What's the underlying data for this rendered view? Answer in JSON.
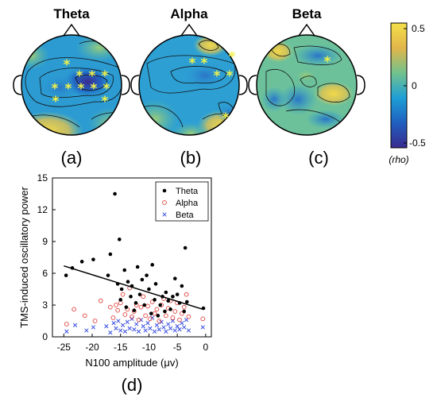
{
  "topomaps": [
    {
      "title": "Theta",
      "panel": "(a)"
    },
    {
      "title": "Alpha",
      "panel": "(b)"
    },
    {
      "title": "Beta",
      "panel": "(c)"
    }
  ],
  "colorbar": {
    "ticks": [
      "0.5",
      "0",
      "-0.5"
    ],
    "label": "(rho)",
    "colors": [
      "#f4e04a",
      "#e2b64a",
      "#72c28d",
      "#1e9fd6",
      "#1f5fbf",
      "#3a2a8f"
    ]
  },
  "scatter_panel": "(d)",
  "chart_data": {
    "type": "scatter",
    "title": "",
    "xlabel": "N100 amplitude (μv)",
    "ylabel": "TMS-induced oscillatory power",
    "xlim": [
      -27,
      1
    ],
    "ylim": [
      0,
      15
    ],
    "xticks": [
      "-25",
      "-20",
      "-15",
      "-10",
      "-5",
      "0"
    ],
    "yticks": [
      "0",
      "3",
      "6",
      "9",
      "12",
      "15"
    ],
    "legend_position": "top-right",
    "series": [
      {
        "name": "Theta",
        "marker": "dot",
        "color": "#000000",
        "points": [
          [
            -24.6,
            5.8
          ],
          [
            -23.5,
            6.5
          ],
          [
            -21.8,
            7.1
          ],
          [
            -19.8,
            7.3
          ],
          [
            -17.2,
            5.8
          ],
          [
            -16.8,
            7.8
          ],
          [
            -16.0,
            13.5
          ],
          [
            -15.5,
            5.0
          ],
          [
            -15.2,
            9.2
          ],
          [
            -15.0,
            3.5
          ],
          [
            -14.8,
            4.5
          ],
          [
            -14.3,
            6.3
          ],
          [
            -14.0,
            2.8
          ],
          [
            -13.7,
            5.2
          ],
          [
            -13.2,
            3.8
          ],
          [
            -13.0,
            4.8
          ],
          [
            -12.6,
            2.5
          ],
          [
            -12.3,
            3.2
          ],
          [
            -12.0,
            6.6
          ],
          [
            -11.6,
            4.0
          ],
          [
            -11.2,
            5.4
          ],
          [
            -10.8,
            3.0
          ],
          [
            -10.4,
            5.8
          ],
          [
            -10.0,
            4.5
          ],
          [
            -9.6,
            2.2
          ],
          [
            -9.4,
            6.8
          ],
          [
            -9.0,
            3.5
          ],
          [
            -8.8,
            5.0
          ],
          [
            -8.4,
            2.0
          ],
          [
            -8.0,
            3.0
          ],
          [
            -7.6,
            3.8
          ],
          [
            -7.2,
            2.4
          ],
          [
            -7.0,
            4.2
          ],
          [
            -6.6,
            3.4
          ],
          [
            -6.2,
            2.6
          ],
          [
            -5.8,
            3.8
          ],
          [
            -5.4,
            5.5
          ],
          [
            -5.0,
            4.0
          ],
          [
            -4.6,
            3.2
          ],
          [
            -4.2,
            4.8
          ],
          [
            -3.8,
            2.4
          ],
          [
            -3.6,
            8.4
          ],
          [
            -3.3,
            3.3
          ],
          [
            -0.4,
            2.7
          ]
        ]
      },
      {
        "name": "Alpha",
        "marker": "circle",
        "color": "#e0403a",
        "points": [
          [
            -24.5,
            1.2
          ],
          [
            -23.2,
            2.6
          ],
          [
            -21.3,
            2.0
          ],
          [
            -19.5,
            1.5
          ],
          [
            -18.5,
            3.4
          ],
          [
            -16.8,
            2.8
          ],
          [
            -16.3,
            1.8
          ],
          [
            -15.8,
            3.0
          ],
          [
            -15.5,
            2.5
          ],
          [
            -15.0,
            3.2
          ],
          [
            -14.6,
            4.0
          ],
          [
            -14.2,
            2.1
          ],
          [
            -13.8,
            2.6
          ],
          [
            -13.4,
            4.6
          ],
          [
            -13.0,
            1.9
          ],
          [
            -12.6,
            2.4
          ],
          [
            -12.2,
            3.0
          ],
          [
            -11.8,
            1.6
          ],
          [
            -11.4,
            2.8
          ],
          [
            -11.0,
            3.8
          ],
          [
            -10.6,
            2.0
          ],
          [
            -10.2,
            2.9
          ],
          [
            -9.8,
            1.7
          ],
          [
            -9.4,
            3.3
          ],
          [
            -9.0,
            2.2
          ],
          [
            -8.6,
            2.6
          ],
          [
            -8.2,
            1.5
          ],
          [
            -7.8,
            3.0
          ],
          [
            -7.4,
            3.6
          ],
          [
            -7.0,
            2.0
          ],
          [
            -6.6,
            2.7
          ],
          [
            -6.2,
            3.4
          ],
          [
            -5.8,
            1.8
          ],
          [
            -5.4,
            2.4
          ],
          [
            -5.0,
            3.2
          ],
          [
            -4.6,
            1.6
          ],
          [
            -4.2,
            2.2
          ],
          [
            -3.8,
            2.8
          ],
          [
            -3.4,
            4.0
          ],
          [
            -3.0,
            1.9
          ],
          [
            -0.5,
            1.7
          ]
        ]
      },
      {
        "name": "Beta",
        "marker": "x",
        "color": "#3a4fe0",
        "points": [
          [
            -24.5,
            0.5
          ],
          [
            -23.0,
            1.1
          ],
          [
            -21.0,
            0.6
          ],
          [
            -19.8,
            0.9
          ],
          [
            -17.5,
            1.0
          ],
          [
            -16.8,
            0.4
          ],
          [
            -16.2,
            1.3
          ],
          [
            -15.8,
            0.8
          ],
          [
            -15.4,
            1.5
          ],
          [
            -15.0,
            0.6
          ],
          [
            -14.6,
            1.1
          ],
          [
            -14.2,
            0.5
          ],
          [
            -13.8,
            1.4
          ],
          [
            -13.4,
            0.8
          ],
          [
            -13.0,
            1.7
          ],
          [
            -12.6,
            0.7
          ],
          [
            -12.2,
            1.2
          ],
          [
            -11.8,
            0.5
          ],
          [
            -11.4,
            1.6
          ],
          [
            -11.0,
            1.0
          ],
          [
            -10.6,
            0.6
          ],
          [
            -10.2,
            1.3
          ],
          [
            -9.8,
            0.8
          ],
          [
            -9.4,
            1.8
          ],
          [
            -9.0,
            0.5
          ],
          [
            -8.6,
            1.1
          ],
          [
            -8.2,
            0.7
          ],
          [
            -7.8,
            1.4
          ],
          [
            -7.4,
            0.9
          ],
          [
            -7.0,
            0.5
          ],
          [
            -6.6,
            1.2
          ],
          [
            -6.2,
            0.8
          ],
          [
            -5.8,
            1.5
          ],
          [
            -5.4,
            0.6
          ],
          [
            -5.0,
            1.0
          ],
          [
            -4.6,
            0.7
          ],
          [
            -4.2,
            1.3
          ],
          [
            -3.8,
            0.9
          ],
          [
            -3.4,
            1.6
          ],
          [
            -3.0,
            0.6
          ],
          [
            -0.5,
            0.9
          ]
        ]
      }
    ],
    "fit_line": {
      "x": [
        -25,
        -0.5
      ],
      "y": [
        6.7,
        2.6
      ]
    }
  }
}
